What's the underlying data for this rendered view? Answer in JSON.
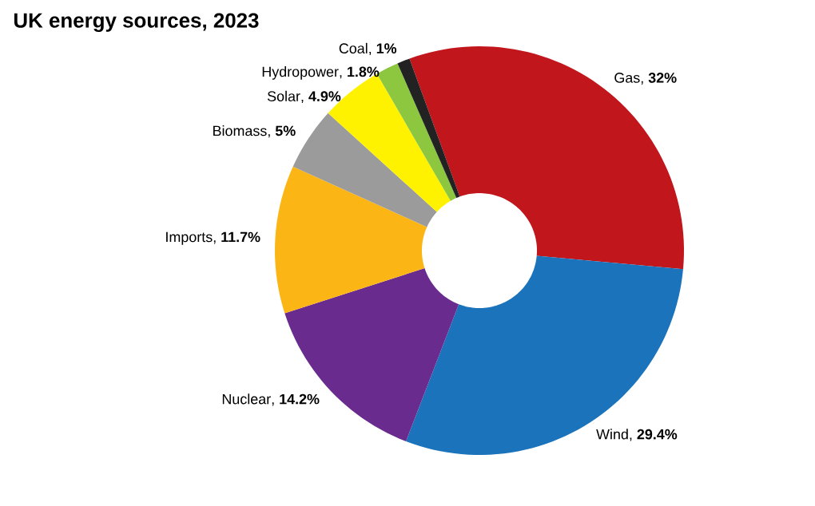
{
  "chart_data": {
    "type": "donut",
    "title": "UK energy sources, 2023",
    "categories": [
      "Gas",
      "Wind",
      "Nuclear",
      "Imports",
      "Biomass",
      "Solar",
      "Hydropower",
      "Coal"
    ],
    "values": [
      32,
      29.4,
      14.2,
      11.7,
      5,
      4.9,
      1.8,
      1
    ],
    "value_labels": [
      ", **32%**",
      ", **29.4%**",
      ", **14.2%**",
      ", **11.7%**",
      ", **5%**",
      ", **4.9%**",
      ", **1.8%**",
      ", **1%**"
    ],
    "colors": [
      "#c0161c",
      "#1a73bb",
      "#6a2b8f",
      "#fbb615",
      "#9b9b9b",
      "#fff200",
      "#8dc63f",
      "#222222"
    ]
  }
}
